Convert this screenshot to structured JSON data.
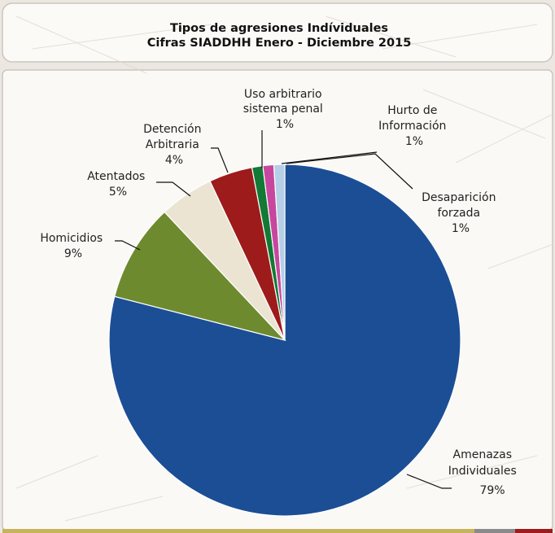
{
  "chart_data": {
    "type": "pie",
    "title": "Tipos de agresiones Indíviduales",
    "subtitle": "Cifras SIADDHH Enero - Diciembre 2015",
    "slices": [
      {
        "name": "Amenazas Individuales",
        "value": 79,
        "label": "79%",
        "color": "#1b4e95"
      },
      {
        "name": "Homicidios",
        "value": 9,
        "label": "9%",
        "color": "#6e8a2e"
      },
      {
        "name": "Atentados",
        "value": 5,
        "label": "5%",
        "color": "#ebe4d2"
      },
      {
        "name": "Detención Arbitraria",
        "value": 4,
        "label": "4%",
        "color": "#9e1b1b"
      },
      {
        "name": "Uso arbitrario sistema penal",
        "value": 1,
        "label": "1%",
        "color": "#137a35"
      },
      {
        "name": "Hurto de Información",
        "value": 1,
        "label": "1%",
        "color": "#c7479e"
      },
      {
        "name": "Desaparición forzada",
        "value": 1,
        "label": "1%",
        "color": "#b5cfe6"
      }
    ]
  },
  "labels": {
    "amenazas": [
      "Amenazas",
      "Individuales",
      "79%"
    ],
    "homicidios": [
      "Homicidios",
      "9%"
    ],
    "atentados": [
      "Atentados",
      "5%"
    ],
    "detencion": [
      "Detención",
      "Arbitraria",
      "4%"
    ],
    "uso": [
      "Uso arbitrario",
      "sistema penal",
      "1%"
    ],
    "hurto": [
      "Hurto de",
      "Información",
      "1%"
    ],
    "desaparicion": [
      "Desaparición",
      "forzada",
      "1%"
    ]
  }
}
